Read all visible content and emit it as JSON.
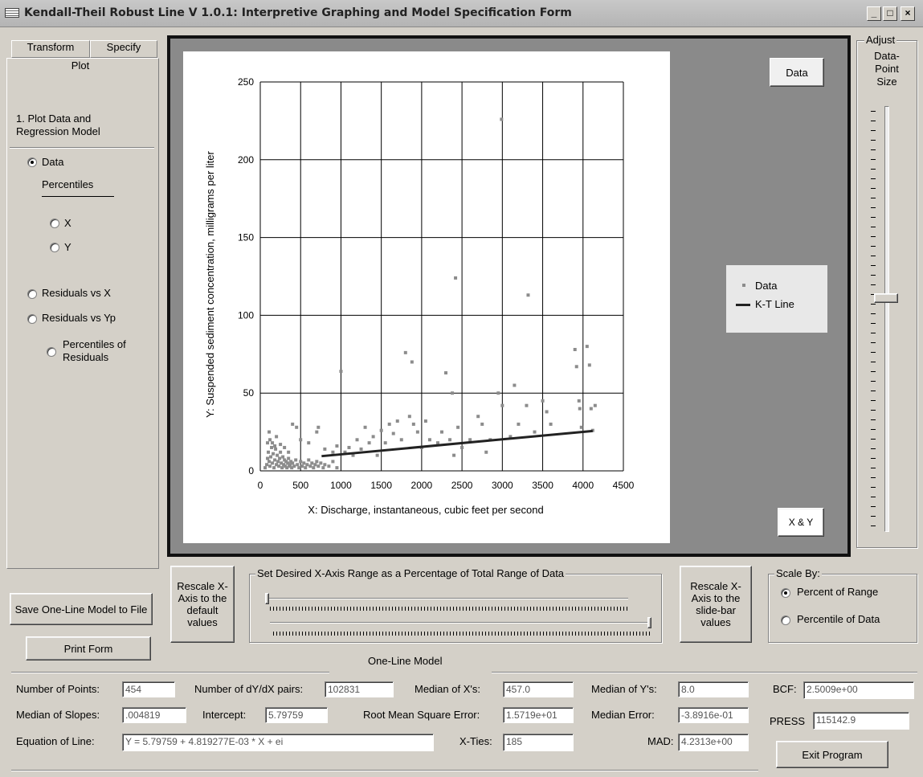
{
  "window": {
    "title": "Kendall-Theil Robust Line V 1.0.1: Interpretive Graphing and Model Specification Form",
    "controls": {
      "minimize": "_",
      "maximize": "□",
      "close": "×"
    }
  },
  "tabs": [
    {
      "label": "Transform"
    },
    {
      "label": "Specify"
    },
    {
      "label": "Plot"
    }
  ],
  "plot_panel": {
    "heading": "1. Plot Data and Regression Model",
    "options": {
      "data": "Data",
      "percentiles": "Percentiles",
      "x": "X",
      "y": "Y",
      "residuals_x": "Residuals vs X",
      "residuals_yp": "Residuals vs Yp",
      "percentiles_residuals": "Percentiles of Residuals"
    },
    "selected": "Data"
  },
  "buttons": {
    "save_model": "Save One-Line Model to File",
    "print_form": "Print Form",
    "rescale_default": "Rescale X-Axis to the default values",
    "rescale_slider": "Rescale X-Axis to the slide-bar values",
    "exit": "Exit Program",
    "data_label": "Data",
    "xy_label": "X & Y"
  },
  "adjust": {
    "title": "Adjust",
    "label": "Data-Point Size",
    "slider_level": 0.45
  },
  "x_range": {
    "title": "Set Desired X-Axis Range as a Percentage of Total Range of Data",
    "min_pct": 0,
    "max_pct": 100
  },
  "scale_by": {
    "title": "Scale By:",
    "options": [
      "Percent of Range",
      "Percentile of Data"
    ],
    "selected": "Percent of Range"
  },
  "model": {
    "title": "One-Line Model",
    "number_of_points_label": "Number of Points:",
    "number_of_points": "454",
    "pairs_label": "Number of dY/dX pairs:",
    "pairs": "102831",
    "median_x_label": "Median of X's:",
    "median_x": "457.0",
    "median_y_label": "Median of Y's:",
    "median_y": "8.0",
    "bcf_label": "BCF:",
    "bcf": "2.5009e+00",
    "median_slopes_label": "Median of Slopes:",
    "median_slopes": ".004819",
    "intercept_label": "Intercept:",
    "intercept": "5.79759",
    "rmse_label": "Root Mean Square Error:",
    "rmse": "1.5719e+01",
    "median_error_label": "Median Error:",
    "median_error": "-3.8916e-01",
    "press_label": "PRESS",
    "press": "115142.9",
    "equation_label": "Equation of Line:",
    "equation": "Y = 5.79759 + 4.819277E-03 * X + ei",
    "x_ties_label": "X-Ties:",
    "x_ties": "185",
    "mad_label": "MAD:",
    "mad": "4.2313e+00"
  },
  "chart_data": {
    "type": "scatter",
    "xlabel": "X: Discharge, instantaneous, cubic feet per second",
    "ylabel": "Y: Suspended sediment concentration, milligrams per liter",
    "xlim": [
      0,
      4500
    ],
    "ylim": [
      0,
      250
    ],
    "xticks": [
      0,
      500,
      1000,
      1500,
      2000,
      2500,
      3000,
      3500,
      4000,
      4500
    ],
    "yticks": [
      0,
      50,
      100,
      150,
      200,
      250
    ],
    "grid": true,
    "legend": {
      "placement": "right",
      "entries": [
        "Data",
        "K-T Line"
      ]
    },
    "colors": {
      "points": "#8c8c8c",
      "line": "#222222"
    },
    "line": {
      "name": "K-T Line",
      "x": [
        760,
        4120
      ],
      "y": [
        9.46,
        25.65
      ]
    },
    "series": [
      {
        "name": "Data",
        "points": [
          [
            60,
            2
          ],
          [
            80,
            4
          ],
          [
            90,
            8
          ],
          [
            100,
            12
          ],
          [
            110,
            6
          ],
          [
            120,
            3
          ],
          [
            130,
            9
          ],
          [
            140,
            15
          ],
          [
            150,
            5
          ],
          [
            160,
            11
          ],
          [
            170,
            2
          ],
          [
            180,
            7
          ],
          [
            190,
            14
          ],
          [
            200,
            4
          ],
          [
            210,
            10
          ],
          [
            220,
            6
          ],
          [
            230,
            3
          ],
          [
            240,
            8
          ],
          [
            250,
            12
          ],
          [
            260,
            5
          ],
          [
            270,
            2
          ],
          [
            280,
            9
          ],
          [
            290,
            4
          ],
          [
            300,
            7
          ],
          [
            310,
            3
          ],
          [
            320,
            6
          ],
          [
            330,
            2
          ],
          [
            340,
            5
          ],
          [
            350,
            8
          ],
          [
            360,
            3
          ],
          [
            370,
            4
          ],
          [
            380,
            6
          ],
          [
            390,
            2
          ],
          [
            400,
            5
          ],
          [
            420,
            3
          ],
          [
            440,
            7
          ],
          [
            460,
            4
          ],
          [
            480,
            2
          ],
          [
            500,
            6
          ],
          [
            520,
            3
          ],
          [
            540,
            5
          ],
          [
            560,
            2
          ],
          [
            580,
            4
          ],
          [
            600,
            7
          ],
          [
            620,
            3
          ],
          [
            640,
            5
          ],
          [
            660,
            2
          ],
          [
            680,
            4
          ],
          [
            700,
            6
          ],
          [
            720,
            3
          ],
          [
            750,
            5
          ],
          [
            780,
            2
          ],
          [
            800,
            4
          ],
          [
            850,
            3
          ],
          [
            900,
            6
          ],
          [
            950,
            2
          ],
          [
            120,
            20
          ],
          [
            150,
            18
          ],
          [
            200,
            22
          ],
          [
            250,
            17
          ],
          [
            90,
            18
          ],
          [
            300,
            15
          ],
          [
            350,
            12
          ],
          [
            110,
            25
          ],
          [
            180,
            16
          ],
          [
            400,
            30
          ],
          [
            450,
            28
          ],
          [
            500,
            20
          ],
          [
            600,
            18
          ],
          [
            700,
            25
          ],
          [
            720,
            28
          ],
          [
            800,
            14
          ],
          [
            900,
            12
          ],
          [
            950,
            16
          ],
          [
            1000,
            64
          ],
          [
            1050,
            12
          ],
          [
            1100,
            15
          ],
          [
            1150,
            10
          ],
          [
            1200,
            20
          ],
          [
            1250,
            14
          ],
          [
            1300,
            28
          ],
          [
            1350,
            18
          ],
          [
            1400,
            22
          ],
          [
            1450,
            10
          ],
          [
            1500,
            26
          ],
          [
            1550,
            18
          ],
          [
            1600,
            30
          ],
          [
            1650,
            24
          ],
          [
            1700,
            32
          ],
          [
            1750,
            20
          ],
          [
            1800,
            76
          ],
          [
            1850,
            35
          ],
          [
            1880,
            70
          ],
          [
            1900,
            30
          ],
          [
            1950,
            25
          ],
          [
            2000,
            15
          ],
          [
            2050,
            32
          ],
          [
            2100,
            20
          ],
          [
            2200,
            18
          ],
          [
            2250,
            25
          ],
          [
            2300,
            63
          ],
          [
            2350,
            20
          ],
          [
            2380,
            50
          ],
          [
            2400,
            10
          ],
          [
            2420,
            124
          ],
          [
            2450,
            28
          ],
          [
            2500,
            15
          ],
          [
            2600,
            20
          ],
          [
            2700,
            35
          ],
          [
            2750,
            30
          ],
          [
            2800,
            12
          ],
          [
            2850,
            20
          ],
          [
            2950,
            50
          ],
          [
            2990,
            226
          ],
          [
            3000,
            42
          ],
          [
            3100,
            22
          ],
          [
            3150,
            55
          ],
          [
            3200,
            30
          ],
          [
            3300,
            42
          ],
          [
            3320,
            113
          ],
          [
            3400,
            25
          ],
          [
            3500,
            45
          ],
          [
            3550,
            38
          ],
          [
            3600,
            30
          ],
          [
            3900,
            78
          ],
          [
            3920,
            67
          ],
          [
            3950,
            45
          ],
          [
            3960,
            40
          ],
          [
            3980,
            28
          ],
          [
            4050,
            80
          ],
          [
            4080,
            68
          ],
          [
            4100,
            40
          ],
          [
            4120,
            26
          ],
          [
            4150,
            42
          ]
        ]
      }
    ]
  }
}
